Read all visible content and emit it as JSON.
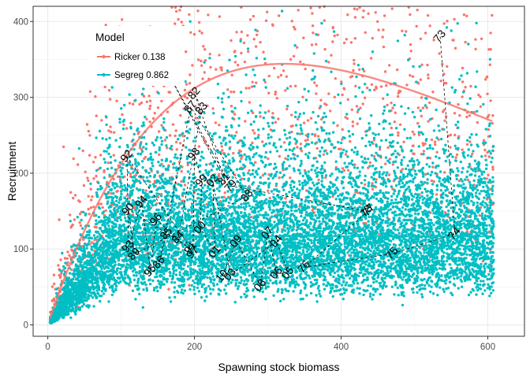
{
  "chart_data": {
    "type": "scatter",
    "xlabel": "Spawning stock biomass",
    "ylabel": "Recruitment",
    "xlim": [
      -20,
      650
    ],
    "ylim": [
      -15,
      420
    ],
    "x_ticks": [
      0,
      200,
      400,
      600
    ],
    "y_ticks": [
      0,
      100,
      200,
      300,
      400
    ],
    "x_tick_labels": [
      "0",
      "200",
      "400",
      "600"
    ],
    "y_tick_labels": [
      "0",
      "100",
      "200",
      "300",
      "400"
    ],
    "grid": true,
    "legend": {
      "title": "Model",
      "position": "top-left inside",
      "entries": [
        {
          "label": "Ricker 0.138",
          "color": "#F8766D"
        },
        {
          "label": "Segreg 0.862",
          "color": "#00BFC4"
        }
      ]
    },
    "series": [
      {
        "name": "Ricker 0.138",
        "color": "#F8766D",
        "curve": {
          "alpha": 2.9,
          "beta": 0.0031
        },
        "point_cloud": {
          "x_range": [
            3,
            608
          ],
          "approx_count": 1500
        }
      },
      {
        "name": "Segreg 0.862",
        "color": "#00BFC4",
        "curve": {
          "breakpoint": 98,
          "plateau": 117
        },
        "point_cloud": {
          "x_range": [
            3,
            608
          ],
          "approx_count": 9500
        }
      }
    ],
    "observations": [
      {
        "label": "01",
        "x": 228,
        "y": 96
      },
      {
        "label": "02",
        "x": 225,
        "y": 190
      },
      {
        "label": "03",
        "x": 249,
        "y": 66
      },
      {
        "label": "04",
        "x": 312,
        "y": 110
      },
      {
        "label": "05",
        "x": 328,
        "y": 68
      },
      {
        "label": "06",
        "x": 312,
        "y": 68
      },
      {
        "label": "07",
        "x": 300,
        "y": 121
      },
      {
        "label": "08",
        "x": 290,
        "y": 52
      },
      {
        "label": "09",
        "x": 257,
        "y": 110
      },
      {
        "label": "10",
        "x": 238,
        "y": 64
      },
      {
        "label": "73",
        "x": 535,
        "y": 380
      },
      {
        "label": "74",
        "x": 555,
        "y": 120
      },
      {
        "label": "75",
        "x": 470,
        "y": 94
      },
      {
        "label": "76",
        "x": 350,
        "y": 76
      },
      {
        "label": "77",
        "x": 438,
        "y": 151
      },
      {
        "label": "78",
        "x": 435,
        "y": 150
      },
      {
        "label": "79",
        "x": 250,
        "y": 183
      },
      {
        "label": "80",
        "x": 165,
        "y": 330
      },
      {
        "label": "81",
        "x": 241,
        "y": 192
      },
      {
        "label": "82",
        "x": 200,
        "y": 305
      },
      {
        "label": "83",
        "x": 210,
        "y": 285
      },
      {
        "label": "84",
        "x": 178,
        "y": 115
      },
      {
        "label": "85",
        "x": 162,
        "y": 120
      },
      {
        "label": "86",
        "x": 152,
        "y": 82
      },
      {
        "label": "87",
        "x": 195,
        "y": 287
      },
      {
        "label": "88",
        "x": 272,
        "y": 170
      },
      {
        "label": "89",
        "x": 118,
        "y": 93
      },
      {
        "label": "90",
        "x": 110,
        "y": 152
      },
      {
        "label": "91",
        "x": 195,
        "y": 101
      },
      {
        "label": "92",
        "x": 108,
        "y": 222
      },
      {
        "label": "93",
        "x": 110,
        "y": 103
      },
      {
        "label": "94",
        "x": 128,
        "y": 162
      },
      {
        "label": "95",
        "x": 140,
        "y": 71
      },
      {
        "label": "96",
        "x": 148,
        "y": 139
      },
      {
        "label": "97",
        "x": 198,
        "y": 95
      },
      {
        "label": "98",
        "x": 200,
        "y": 225
      },
      {
        "label": "99",
        "x": 210,
        "y": 190
      },
      {
        "label": "00",
        "x": 208,
        "y": 128
      }
    ]
  }
}
